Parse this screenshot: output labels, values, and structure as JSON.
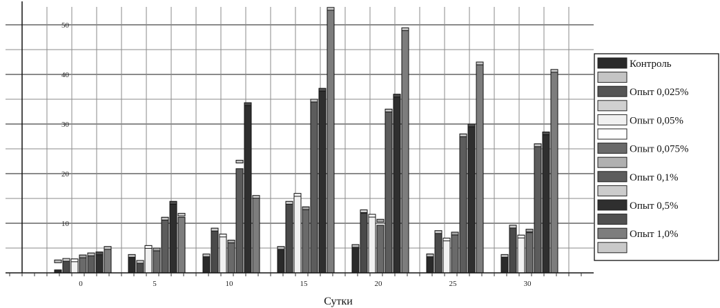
{
  "chart_data": {
    "type": "bar",
    "xlabel": "Сутки",
    "ylabel": "",
    "ylim": [
      0,
      54
    ],
    "yticks": [
      10,
      20,
      30,
      40,
      50
    ],
    "grid": true,
    "legend_position": "right",
    "categories": [
      "0",
      "5",
      "10",
      "15",
      "20",
      "25",
      "30"
    ],
    "series": [
      {
        "name": "Контроль",
        "color": "#2a2a2a",
        "top_color": "#1c1c1c",
        "values": [
          0.6,
          3.5,
          3.5,
          5.3,
          5.7,
          3.8,
          3.5
        ]
      },
      {
        "name": "",
        "color": "#bdbdbd",
        "top_color": "#9e9e9e",
        "values": [
          2.6,
          3.7,
          3.8,
          5.3,
          5.7,
          3.8,
          3.7
        ]
      },
      {
        "name": "",
        "color": "#4a4a4a",
        "top_color": "#333333",
        "values": [
          2.8,
          2.3,
          9.0,
          14.4,
          12.0,
          8.5,
          9.6
        ]
      },
      {
        "name": "Опыт 0,025%",
        "color": "#d0d0d0",
        "top_color": "#b5b5b5",
        "values": [
          2.9,
          2.5,
          9.0,
          14.4,
          12.7,
          8.5,
          9.6
        ]
      },
      {
        "name": "",
        "color": "#f1f1f1",
        "top_color": "#d9d9d9",
        "values": [
          2.8,
          5.5,
          7.8,
          16.0,
          11.8,
          7.0,
          7.6
        ]
      },
      {
        "name": "Опыт 0,05%",
        "color": "#ffffff",
        "top_color": "#e2e2e2",
        "values": [
          2.8,
          5.5,
          7.8,
          16.0,
          11.8,
          7.0,
          7.6
        ]
      },
      {
        "name": "",
        "color": "#6a6a6a",
        "top_color": "#505050",
        "values": [
          3.6,
          4.9,
          6.6,
          13.3,
          9.6,
          8.2,
          8.1
        ]
      },
      {
        "name": "Опыт 0,075%",
        "color": "#a8a8a8",
        "top_color": "#8a8a8a",
        "values": [
          3.6,
          5.0,
          6.6,
          13.3,
          10.8,
          8.2,
          8.8
        ]
      },
      {
        "name": "",
        "color": "#5c5c5c",
        "top_color": "#444444",
        "values": [
          4.0,
          11.2,
          21.0,
          35.0,
          33.0,
          28.0,
          26.0
        ]
      },
      {
        "name": "Опыт 0,1%",
        "color": "#c6c6c6",
        "top_color": "#aaaaaa",
        "values": [
          4.0,
          11.2,
          22.7,
          35.0,
          33.0,
          28.0,
          26.0
        ]
      },
      {
        "name": "",
        "color": "#2f2f2f",
        "top_color": "#1f1f1f",
        "values": [
          4.2,
          14.4,
          34.0,
          37.0,
          36.0,
          30.0,
          28.0
        ]
      },
      {
        "name": "Опыт 0,5%",
        "color": "#505050",
        "top_color": "#3a3a3a",
        "values": [
          4.2,
          14.4,
          34.3,
          37.2,
          36.0,
          30.0,
          28.4
        ]
      },
      {
        "name": "",
        "color": "#7d7d7d",
        "top_color": "#606060",
        "values": [
          5.3,
          11.2,
          15.3,
          53.3,
          49.2,
          42.3,
          40.9
        ]
      },
      {
        "name": "Опыт 1,0%",
        "color": "#c9c9c9",
        "top_color": "#adadad",
        "values": [
          5.3,
          12.0,
          15.6,
          53.5,
          49.4,
          42.5,
          41.0
        ]
      }
    ],
    "legend_entries": [
      {
        "label": "Контроль",
        "color": "#2a2a2a"
      },
      {
        "label": "",
        "color": "#c4c4c4"
      },
      {
        "label": "Опыт 0,025%",
        "color": "#555555"
      },
      {
        "label": "",
        "color": "#d0d0d0"
      },
      {
        "label": "Опыт 0,05%",
        "color": "#f1f1f1"
      },
      {
        "label": "",
        "color": "#ffffff"
      },
      {
        "label": "Опыт 0,075%",
        "color": "#6a6a6a"
      },
      {
        "label": "",
        "color": "#b0b0b0"
      },
      {
        "label": "Опыт 0,1%",
        "color": "#5c5c5c"
      },
      {
        "label": "",
        "color": "#cccccc"
      },
      {
        "label": "Опыт 0,5%",
        "color": "#2f2f2f"
      },
      {
        "label": "",
        "color": "#505050"
      },
      {
        "label": "Опыт 1,0%",
        "color": "#7d7d7d"
      },
      {
        "label": "",
        "color": "#c9c9c9"
      }
    ]
  }
}
